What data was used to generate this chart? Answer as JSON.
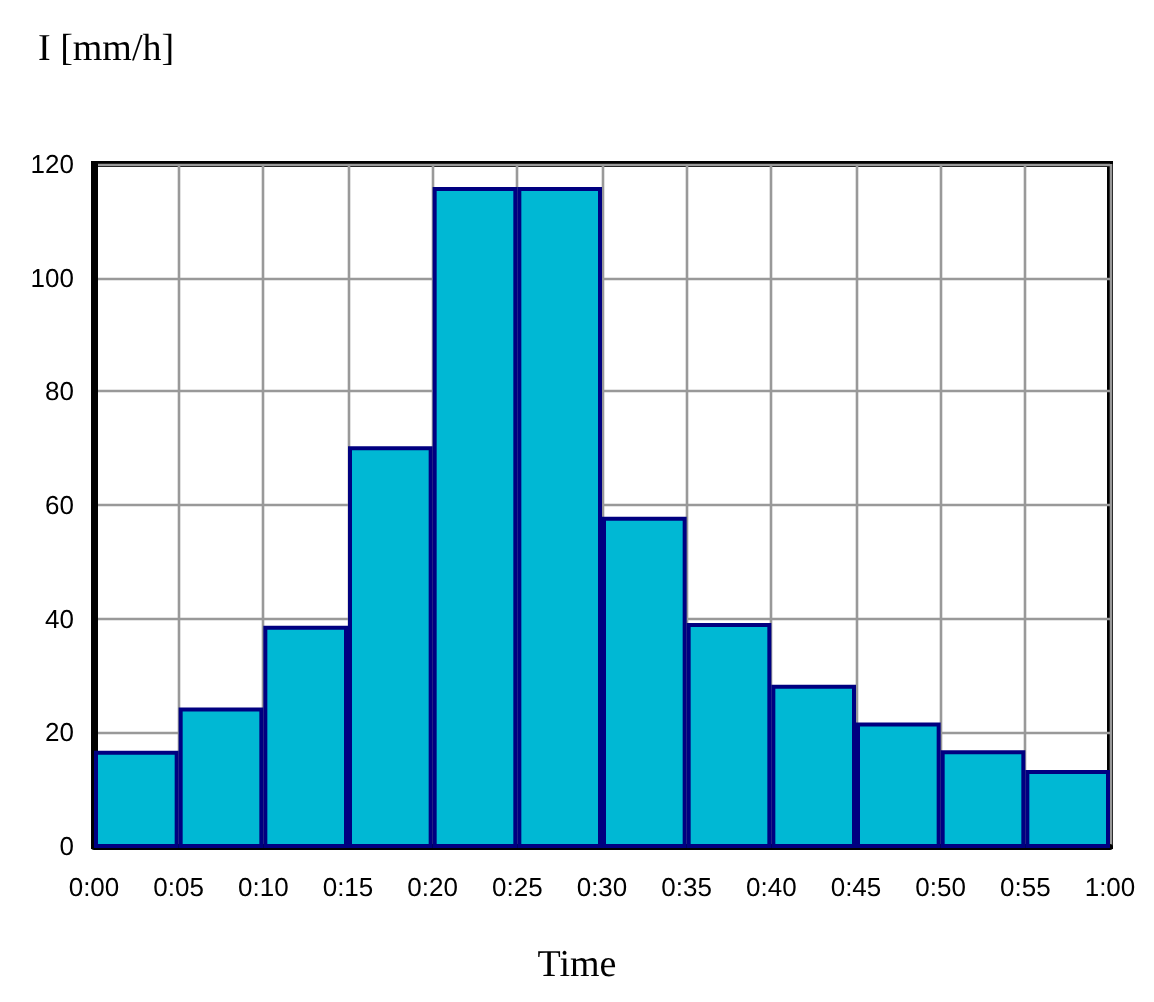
{
  "chart_data": {
    "type": "histogram",
    "xlabel": "Time",
    "ylabel": "I [mm/h]",
    "bins": [
      0,
      0.0833333,
      0.1666667,
      0.25,
      0.3333333,
      0.4166667,
      0.5,
      0.5833333,
      0.6666667,
      0.75,
      0.8333333,
      0.9166667,
      1
    ],
    "values": [
      16.4,
      24,
      38.4,
      70,
      115.6,
      115.6,
      57.6,
      38.9,
      28,
      21.4,
      16.5,
      13
    ],
    "color": "#00b8d4",
    "xlim": [
      0,
      1
    ],
    "xticks": [
      {
        "value": 0,
        "label": "0:00"
      },
      {
        "value": 0.0833333,
        "label": "0:05"
      },
      {
        "value": 0.1666667,
        "label": "0:10"
      },
      {
        "value": 0.25,
        "label": "0:15"
      },
      {
        "value": 0.3333333,
        "label": "0:20"
      },
      {
        "value": 0.4166667,
        "label": "0:25"
      },
      {
        "value": 0.5,
        "label": "0:30"
      },
      {
        "value": 0.5833333,
        "label": "0:35"
      },
      {
        "value": 0.6666667,
        "label": "0:40"
      },
      {
        "value": 0.75,
        "label": "0:45"
      },
      {
        "value": 0.8333333,
        "label": "0:50"
      },
      {
        "value": 0.9166667,
        "label": "0:55"
      },
      {
        "value": 1,
        "label": "1:00"
      }
    ],
    "ylim": [
      0,
      120
    ],
    "yticks": [
      0,
      20,
      40,
      60,
      80,
      100,
      120
    ],
    "grid": true
  }
}
